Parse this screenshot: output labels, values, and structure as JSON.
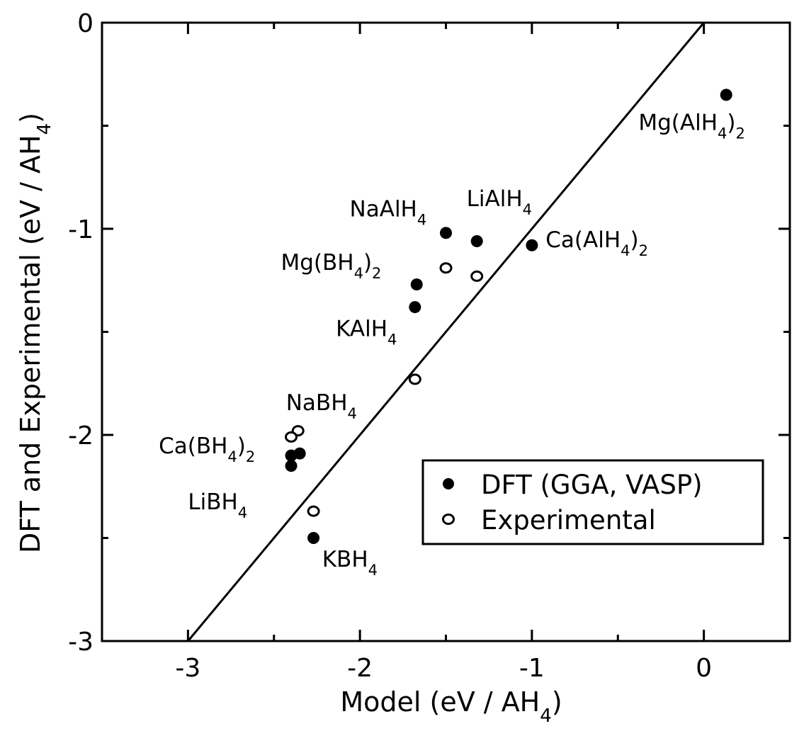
{
  "chart_data": {
    "type": "scatter",
    "xlabel": "Model (eV / AH",
    "xlabel_sub": "4",
    "xlabel_end": ")",
    "ylabel": "DFT and Experimental (eV / AH",
    "ylabel_sub": "4",
    "ylabel_end": ")",
    "xlim": [
      -3.5,
      0.5
    ],
    "ylim": [
      -3,
      0
    ],
    "x_major_ticks": [
      -3,
      -2,
      -1,
      0
    ],
    "x_tick_labels": [
      "-3",
      "-2",
      "-1",
      "0"
    ],
    "x_minor_ticks": [
      -2.5,
      -1.5,
      -0.5
    ],
    "y_major_ticks": [
      0,
      -1,
      -2,
      -3
    ],
    "y_tick_labels": [
      "0",
      "-1",
      "-2",
      "-3"
    ],
    "y_minor_ticks": [
      -0.5,
      -1.5,
      -2.5
    ],
    "grid": false,
    "reference_line": {
      "from": [
        -3,
        -3
      ],
      "to": [
        0,
        0
      ]
    },
    "legend_position": "bottom-right",
    "series": [
      {
        "name": "DFT (GGA, VASP)",
        "marker": "filled-circle",
        "points": [
          {
            "x": 0.13,
            "y": -0.35
          },
          {
            "x": -1.5,
            "y": -1.02
          },
          {
            "x": -1.32,
            "y": -1.06
          },
          {
            "x": -1.0,
            "y": -1.08
          },
          {
            "x": -1.67,
            "y": -1.27
          },
          {
            "x": -1.68,
            "y": -1.38
          },
          {
            "x": -2.4,
            "y": -2.1
          },
          {
            "x": -2.35,
            "y": -2.09
          },
          {
            "x": -2.4,
            "y": -2.15
          },
          {
            "x": -2.27,
            "y": -2.5
          }
        ]
      },
      {
        "name": "Experimental",
        "marker": "open-circle",
        "points": [
          {
            "x": -1.5,
            "y": -1.19
          },
          {
            "x": -1.32,
            "y": -1.23
          },
          {
            "x": -1.68,
            "y": -1.73
          },
          {
            "x": -2.36,
            "y": -1.98
          },
          {
            "x": -2.4,
            "y": -2.01
          },
          {
            "x": -2.27,
            "y": -2.37
          }
        ]
      }
    ],
    "annotations": [
      {
        "main": "Mg(AlH",
        "sub1": "4",
        "mid": ")",
        "sub2": "2",
        "x": -0.38,
        "y": -0.52
      },
      {
        "main": "NaAlH",
        "sub1": "4",
        "mid": "",
        "sub2": "",
        "x": -2.06,
        "y": -0.94
      },
      {
        "main": "LiAlH",
        "sub1": "4",
        "mid": "",
        "sub2": "",
        "x": -1.38,
        "y": -0.89
      },
      {
        "main": "Ca(AlH",
        "sub1": "4",
        "mid": ")",
        "sub2": "2",
        "x": -0.92,
        "y": -1.09
      },
      {
        "main": "Mg(BH",
        "sub1": "4",
        "mid": ")",
        "sub2": "2",
        "x": -2.46,
        "y": -1.2
      },
      {
        "main": "KAlH",
        "sub1": "4",
        "mid": "",
        "sub2": "",
        "x": -2.14,
        "y": -1.52
      },
      {
        "main": "NaBH",
        "sub1": "4",
        "mid": "",
        "sub2": "",
        "x": -2.43,
        "y": -1.88
      },
      {
        "main": "Ca(BH",
        "sub1": "4",
        "mid": ")",
        "sub2": "2",
        "x": -3.17,
        "y": -2.09
      },
      {
        "main": "LiBH",
        "sub1": "4",
        "mid": "",
        "sub2": "",
        "x": -3.0,
        "y": -2.36
      },
      {
        "main": "KBH",
        "sub1": "4",
        "mid": "",
        "sub2": "",
        "x": -2.22,
        "y": -2.64
      }
    ]
  }
}
